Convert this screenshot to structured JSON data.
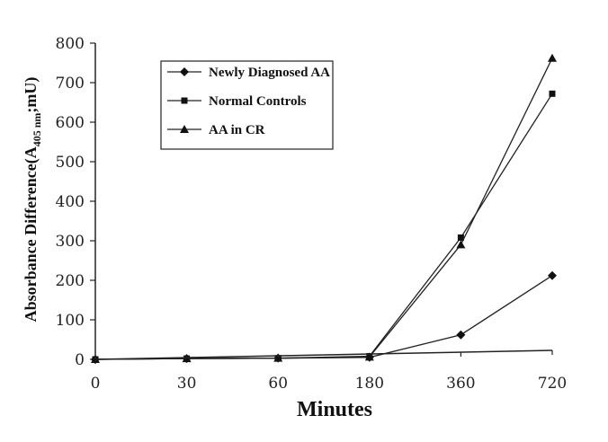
{
  "chart_data": {
    "type": "line",
    "categories": [
      "0",
      "30",
      "60",
      "180",
      "360",
      "720"
    ],
    "xlabel": "Minutes",
    "ylabel_main": "Absorbance Difference(A",
    "ylabel_sub": "405 nm",
    "ylabel_end": ";mU)",
    "ylim": [
      0,
      800
    ],
    "yticks": [
      "0",
      "100",
      "200",
      "300",
      "400",
      "500",
      "600",
      "700",
      "800"
    ],
    "grid": false,
    "legend_position": "top-left",
    "series": [
      {
        "name": "Newly Diagnosed AA",
        "marker": "diamond",
        "values": [
          0,
          2,
          3,
          5,
          62,
          212
        ]
      },
      {
        "name": "Normal Controls",
        "marker": "square",
        "values": [
          0,
          2,
          3,
          8,
          308,
          672
        ]
      },
      {
        "name": "AA in CR",
        "marker": "triangle",
        "values": [
          0,
          2,
          3,
          6,
          290,
          762
        ]
      }
    ]
  }
}
